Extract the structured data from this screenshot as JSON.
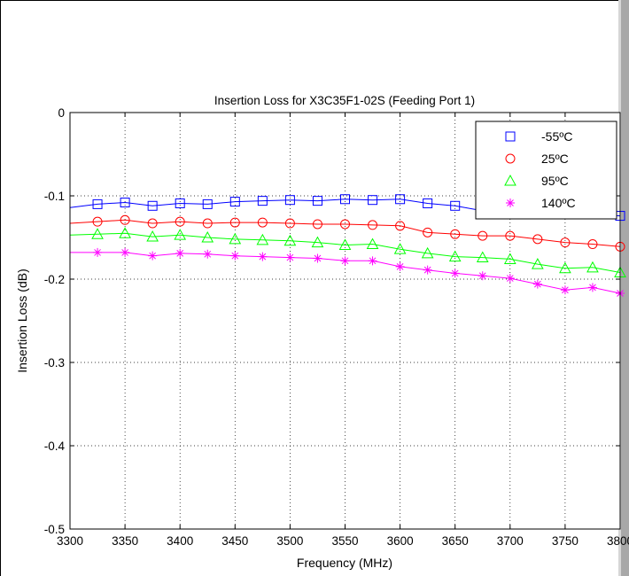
{
  "chart_data": {
    "type": "line",
    "title": "Insertion Loss for X3C35F1-02S (Feeding Port 1)",
    "xlabel": "Frequency (MHz)",
    "ylabel": "Insertion Loss (dB)",
    "xlim": [
      3300,
      3800
    ],
    "ylim": [
      -0.5,
      0
    ],
    "xticks": [
      3300,
      3350,
      3400,
      3450,
      3500,
      3550,
      3600,
      3650,
      3700,
      3750,
      3800
    ],
    "yticks": [
      -0.5,
      -0.4,
      -0.3,
      -0.2,
      -0.1,
      0
    ],
    "xtick_labels": [
      "3300",
      "3350",
      "3400",
      "3450",
      "3500",
      "3550",
      "3600",
      "3650",
      "3700",
      "3750",
      "3800"
    ],
    "ytick_labels": [
      "-0.5",
      "-0.4",
      "-0.3",
      "-0.2",
      "-0.1",
      "0"
    ],
    "grid": true,
    "legend_position": "top-right",
    "series": [
      {
        "name": "-55ºC",
        "color": "#0000ff",
        "marker": "square",
        "x": [
          3300,
          3325,
          3350,
          3375,
          3400,
          3425,
          3450,
          3475,
          3500,
          3525,
          3550,
          3575,
          3600,
          3625,
          3650,
          3675,
          3700,
          3725,
          3750,
          3775,
          3800
        ],
        "values": [
          -0.114,
          -0.11,
          -0.108,
          -0.112,
          -0.109,
          -0.11,
          -0.107,
          -0.106,
          -0.105,
          -0.106,
          -0.104,
          -0.105,
          -0.104,
          -0.109,
          -0.112,
          -0.118,
          -0.112,
          -0.112,
          -0.115,
          -0.122,
          -0.124
        ]
      },
      {
        "name": "25ºC",
        "color": "#ff0000",
        "marker": "circle",
        "x": [
          3300,
          3325,
          3350,
          3375,
          3400,
          3425,
          3450,
          3475,
          3500,
          3525,
          3550,
          3575,
          3600,
          3625,
          3650,
          3675,
          3700,
          3725,
          3750,
          3775,
          3800
        ],
        "values": [
          -0.133,
          -0.131,
          -0.129,
          -0.133,
          -0.131,
          -0.133,
          -0.132,
          -0.132,
          -0.133,
          -0.134,
          -0.134,
          -0.135,
          -0.136,
          -0.144,
          -0.146,
          -0.148,
          -0.148,
          -0.152,
          -0.156,
          -0.158,
          -0.161
        ]
      },
      {
        "name": "95ºC",
        "color": "#00ff00",
        "marker": "triangle",
        "x": [
          3300,
          3325,
          3350,
          3375,
          3400,
          3425,
          3450,
          3475,
          3500,
          3525,
          3550,
          3575,
          3600,
          3625,
          3650,
          3675,
          3700,
          3725,
          3750,
          3775,
          3800
        ],
        "values": [
          -0.147,
          -0.146,
          -0.145,
          -0.149,
          -0.147,
          -0.15,
          -0.152,
          -0.153,
          -0.154,
          -0.156,
          -0.159,
          -0.158,
          -0.164,
          -0.169,
          -0.173,
          -0.174,
          -0.176,
          -0.182,
          -0.187,
          -0.186,
          -0.192
        ]
      },
      {
        "name": "140ºC",
        "color": "#ff00ff",
        "marker": "star",
        "x": [
          3300,
          3325,
          3350,
          3375,
          3400,
          3425,
          3450,
          3475,
          3500,
          3525,
          3550,
          3575,
          3600,
          3625,
          3650,
          3675,
          3700,
          3725,
          3750,
          3775,
          3800
        ],
        "values": [
          -0.168,
          -0.168,
          -0.168,
          -0.172,
          -0.169,
          -0.17,
          -0.172,
          -0.173,
          -0.174,
          -0.175,
          -0.178,
          -0.178,
          -0.185,
          -0.189,
          -0.193,
          -0.196,
          -0.199,
          -0.206,
          -0.213,
          -0.21,
          -0.217
        ]
      }
    ]
  }
}
